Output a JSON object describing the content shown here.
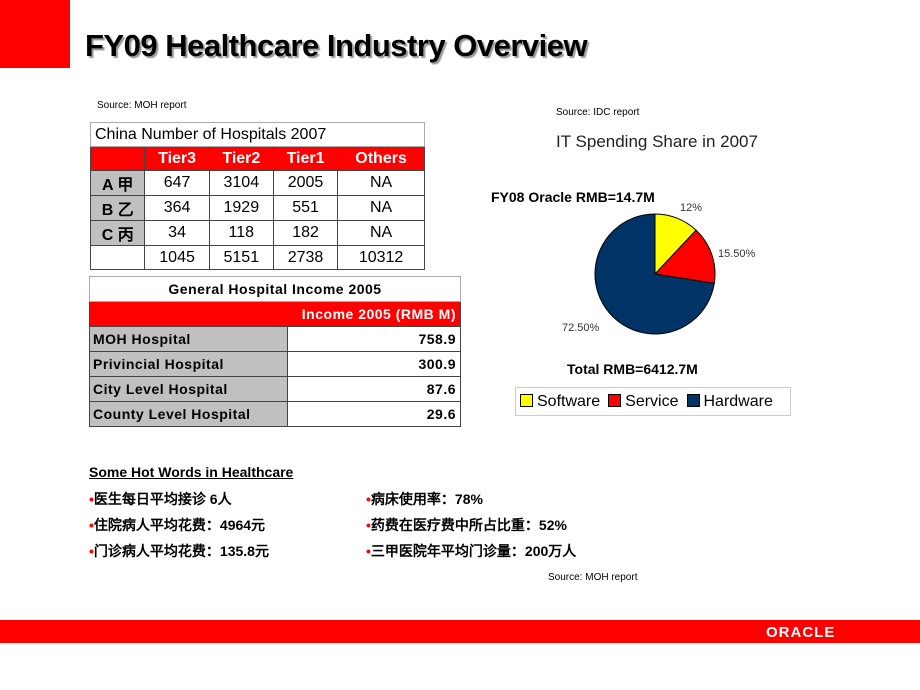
{
  "title": "FY09 Healthcare Industry Overview",
  "source_left": "Source: MOH report",
  "source_right": "Source: IDC report",
  "source_bottom": "Source: MOH report",
  "hospitals_table": {
    "title": "China Number of Hospitals 2007",
    "headers": [
      "",
      "Tier3",
      "Tier2",
      "Tier1",
      "Others"
    ],
    "rows": [
      [
        "A 甲",
        "647",
        "3104",
        "2005",
        "NA"
      ],
      [
        "B 乙",
        "364",
        "1929",
        "551",
        "NA"
      ],
      [
        "C 丙",
        "34",
        "118",
        "182",
        "NA"
      ],
      [
        "",
        "1045",
        "5151",
        "2738",
        "10312"
      ]
    ]
  },
  "income_table": {
    "title": "General Hospital Income 2005",
    "header": "Income 2005 (RMB M)",
    "rows": [
      [
        "MOH Hospital",
        "758.9"
      ],
      [
        "Privincial Hospital",
        "300.9"
      ],
      [
        "City Level Hospital",
        "87.6"
      ],
      [
        "County Level Hospital",
        "29.6"
      ]
    ]
  },
  "hot_words": {
    "title": "Some Hot Words in Healthcare",
    "bullet": "•",
    "left": [
      "医生每日平均接诊 6人",
      "住院病人平均花费：4964元",
      "门诊病人平均花费：135.8元"
    ],
    "right": [
      "病床使用率：78%",
      "药费在医疗费中所占比重：52%",
      "三甲医院年平均门诊量：200万人"
    ]
  },
  "chart_data": {
    "type": "pie",
    "title": "IT Spending Share in 2007",
    "annotation_top": "FY08 Oracle RMB=14.7M",
    "annotation_bottom": "Total RMB=6412.7M",
    "slices": [
      {
        "name": "Software",
        "value": 12,
        "label": "12%",
        "color": "#ffff00"
      },
      {
        "name": "Service",
        "value": 15.5,
        "label": "15.50%",
        "color": "#ff0000"
      },
      {
        "name": "Hardware",
        "value": 72.5,
        "label": "72.50%",
        "color": "#003366"
      }
    ],
    "legend": "bottom"
  },
  "brand": {
    "logo": "ORACLE",
    "color": "#ff0000"
  }
}
